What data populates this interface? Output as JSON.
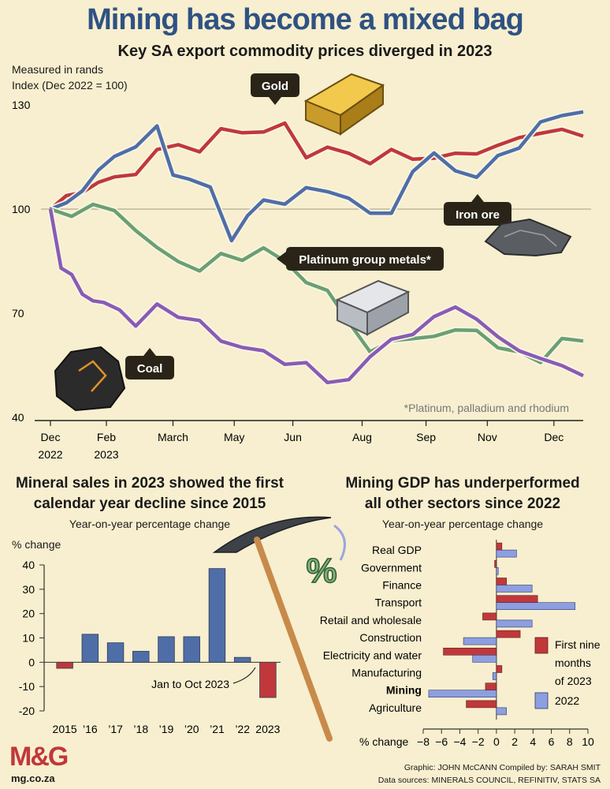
{
  "header": {
    "title": "Mining has become a mixed bag",
    "subtitle": "Key SA export commodity prices diverged in 2023"
  },
  "colors": {
    "background": "#f7efcf",
    "gold": "#c0383a",
    "iron_ore": "#4f6ea8",
    "pgm": "#6aa073",
    "coal": "#8a5bb5",
    "bar_blue": "#4f6ea8",
    "bar_red": "#c0383a",
    "title_blue": "#2f5283"
  },
  "chart_data": [
    {
      "type": "line",
      "ylabel_lines": [
        "Measured in rands",
        "Index (Dec 2022 = 100)"
      ],
      "ylim": [
        40,
        130
      ],
      "yticks": [
        "130",
        "100",
        "70",
        "40"
      ],
      "xticks": [
        "Dec",
        "Feb",
        "March",
        "May",
        "Jun",
        "Aug",
        "Sep",
        "Nov",
        "Dec"
      ],
      "xyears": [
        "2022",
        "2023"
      ],
      "footnote": "*Platinum, palladium and rhodium",
      "series": [
        {
          "name": "Gold",
          "x": [
            0,
            3,
            6,
            9,
            12,
            16,
            20,
            24,
            28,
            32,
            36,
            40,
            44,
            48,
            52,
            56,
            60,
            64,
            68,
            72,
            76,
            80,
            84,
            88,
            92,
            96,
            100
          ],
          "values": [
            100,
            103,
            106,
            107,
            109,
            111,
            116,
            119,
            117,
            122,
            123,
            122,
            124,
            116,
            117,
            116,
            114,
            116,
            115,
            115,
            115,
            117,
            118,
            120,
            123,
            122,
            121
          ]
        },
        {
          "name": "Iron ore",
          "x": [
            0,
            3,
            6,
            9,
            12,
            16,
            20,
            23,
            26,
            30,
            34,
            37,
            40,
            44,
            48,
            52,
            56,
            60,
            64,
            68,
            72,
            76,
            80,
            84,
            88,
            92,
            96,
            100
          ],
          "values": [
            100,
            102,
            106,
            110,
            116,
            118,
            123,
            111,
            108,
            106,
            92,
            97,
            103,
            102,
            105,
            106,
            103,
            98,
            100,
            110,
            116,
            112,
            108,
            116,
            118,
            124,
            128,
            128
          ]
        },
        {
          "name": "Platinum group metals*",
          "x": [
            0,
            4,
            8,
            12,
            16,
            20,
            24,
            28,
            32,
            36,
            40,
            44,
            48,
            52,
            56,
            60,
            64,
            68,
            72,
            76,
            80,
            84,
            88,
            92,
            96,
            100
          ],
          "values": [
            100,
            99,
            101,
            99,
            95,
            88,
            85,
            83,
            86,
            86,
            89,
            84,
            80,
            76,
            67,
            60,
            61,
            63,
            64,
            64,
            66,
            60,
            58,
            57,
            62,
            62
          ]
        },
        {
          "name": "Coal",
          "x": [
            0,
            2,
            4,
            6,
            8,
            10,
            13,
            16,
            20,
            24,
            28,
            32,
            36,
            40,
            44,
            48,
            52,
            56,
            60,
            64,
            68,
            72,
            76,
            80,
            84,
            88,
            92,
            96,
            100
          ],
          "values": [
            100,
            84,
            80,
            76,
            74,
            72,
            72,
            66,
            72,
            70,
            67,
            62,
            61,
            58,
            56,
            56,
            49,
            52,
            57,
            62,
            65,
            68,
            72,
            69,
            62,
            60,
            57,
            54,
            52
          ]
        }
      ]
    },
    {
      "type": "bar",
      "title_lines": [
        "Mineral sales in 2023 showed the first",
        "calendar year decline since 2015"
      ],
      "subtitle": "Year-on-year percentage change",
      "ylabel": "% change",
      "ylim": [
        -20,
        40
      ],
      "yticks": [
        "40",
        "30",
        "20",
        "10",
        "0",
        "-10",
        "-20"
      ],
      "categories": [
        "2015",
        "’16",
        "’17",
        "’18",
        "’19",
        "’20",
        "’21",
        "’22",
        "2023"
      ],
      "values": [
        -2.5,
        11.5,
        8,
        4.5,
        10.5,
        10.5,
        38.5,
        2,
        -14.5
      ],
      "annotation": "Jan to Oct 2023"
    },
    {
      "type": "bar",
      "title_lines": [
        "Mining GDP has underperformed",
        "all other sectors since 2022"
      ],
      "subtitle": "Year-on-year percentage change",
      "xlabel": "% change",
      "xlim": [
        -8,
        10
      ],
      "xticks": [
        "−8",
        "−6",
        "−4",
        "−2",
        "0",
        "2",
        "4",
        "6",
        "8",
        "10"
      ],
      "categories": [
        "Real GDP",
        "Government",
        "Finance",
        "Transport",
        "Retail and wholesale",
        "Construction",
        "Electricity and water",
        "Manufacturing",
        "Mining",
        "Agriculture"
      ],
      "series": [
        {
          "name": "First nine months of 2023",
          "values": [
            0.6,
            -0.2,
            1.1,
            4.5,
            -1.5,
            2.6,
            -5.8,
            0.6,
            -1.2,
            -3.3
          ]
        },
        {
          "name": "2022",
          "values": [
            2.2,
            0.2,
            3.9,
            8.6,
            3.9,
            -3.6,
            -2.6,
            -0.4,
            -7.4,
            1.1
          ]
        }
      ],
      "legend": [
        "First nine months of 2023",
        "2022"
      ]
    }
  ],
  "footer": {
    "logo": "M&G",
    "site": "mg.co.za",
    "credits": "Graphic: JOHN McCANN  Compiled by: SARAH SMIT",
    "sources": "Data sources: MINERALS COUNCIL, REFINITIV, STATS SA"
  }
}
